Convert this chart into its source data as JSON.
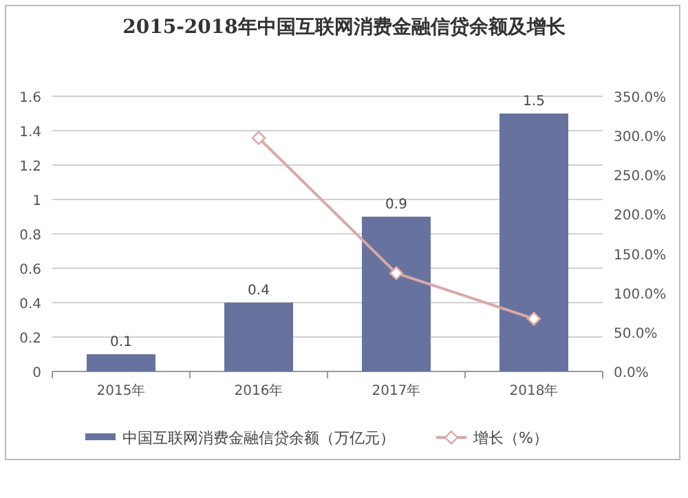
{
  "chart_data": {
    "type": "bar",
    "title": "2015-2018年中国互联网消费金融信贷余额及增长",
    "categories": [
      "2015年",
      "2016年",
      "2017年",
      "2018年"
    ],
    "series": [
      {
        "name": "中国互联网消费金融信贷余额（万亿元）",
        "color": "#67739e",
        "values": [
          0.1,
          0.4,
          0.9,
          1.5
        ],
        "value_labels": [
          "0.1",
          "0.4",
          "0.9",
          "1.5"
        ]
      },
      {
        "name": "增长（%）",
        "type": "line",
        "axis": "y2",
        "color": "#d9a8a8",
        "marker": "diamond",
        "values": [
          null,
          297,
          125,
          67
        ]
      }
    ],
    "ylim": [
      0,
      1.6
    ],
    "yticks": [
      0,
      0.2,
      0.4,
      0.6,
      0.8,
      1,
      1.2,
      1.4,
      1.6
    ],
    "y2lim": [
      0,
      350
    ],
    "y2ticks": [
      {
        "value": 0,
        "label": "0.0%"
      },
      {
        "value": 50,
        "label": "50.0%"
      },
      {
        "value": 100,
        "label": "100.0%"
      },
      {
        "value": 150,
        "label": "150.0%"
      },
      {
        "value": 200,
        "label": "200.0%"
      },
      {
        "value": 250,
        "label": "250.0%"
      },
      {
        "value": 300,
        "label": "300.0%"
      },
      {
        "value": 350,
        "label": "350.0%"
      }
    ],
    "grid": "y",
    "legend": "bottom"
  }
}
